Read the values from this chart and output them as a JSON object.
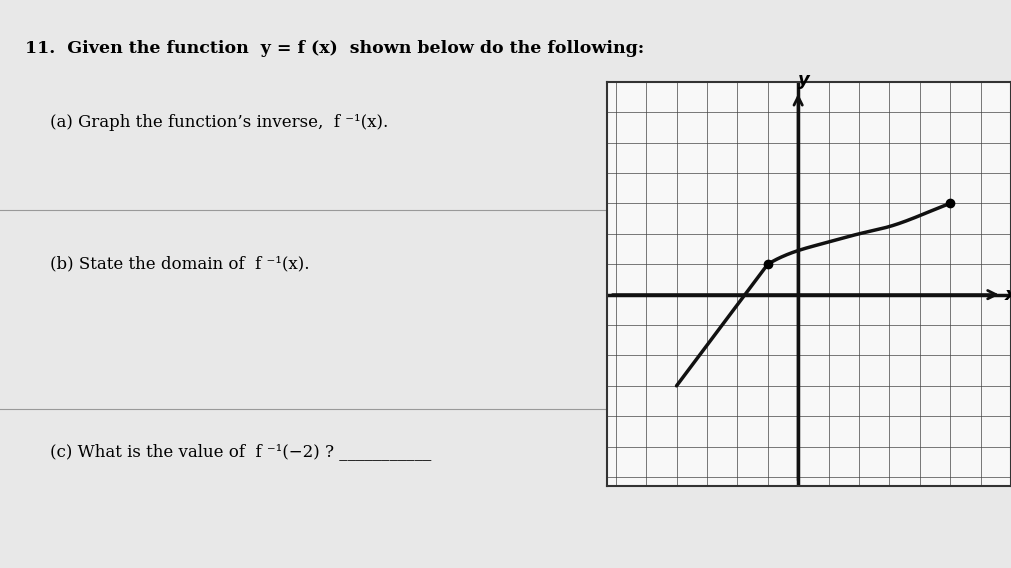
{
  "background_color": "#e8e8e8",
  "paper_color": "#f5f5f5",
  "grid_color": "#555555",
  "grid_minor_color": "#aaaaaa",
  "curve_color": "#111111",
  "axis_color": "#111111",
  "text_color": "#000000",
  "grid_range": [
    -6,
    6
  ],
  "dot_points": [
    [
      -1,
      1
    ],
    [
      5,
      3
    ]
  ],
  "line_segment": [
    [
      -4,
      -3
    ],
    [
      -1,
      1
    ]
  ],
  "curve_x": [
    -1,
    0,
    1,
    2,
    3,
    4,
    5
  ],
  "curve_y": [
    1.0,
    1.45,
    1.73,
    2.0,
    2.24,
    2.6,
    3.0
  ],
  "xlabel": "x",
  "ylabel": "y",
  "title_text": "11.  Given the function  y = f (x)  shown below do the following:",
  "line_a": "(a) Graph the function’s inverse,  f ⁻¹(x).",
  "line_b": "(b) State the domain of  f ⁻¹(x).",
  "line_c": "(c) What is the value of  f ⁻¹(−2) ? ___________"
}
